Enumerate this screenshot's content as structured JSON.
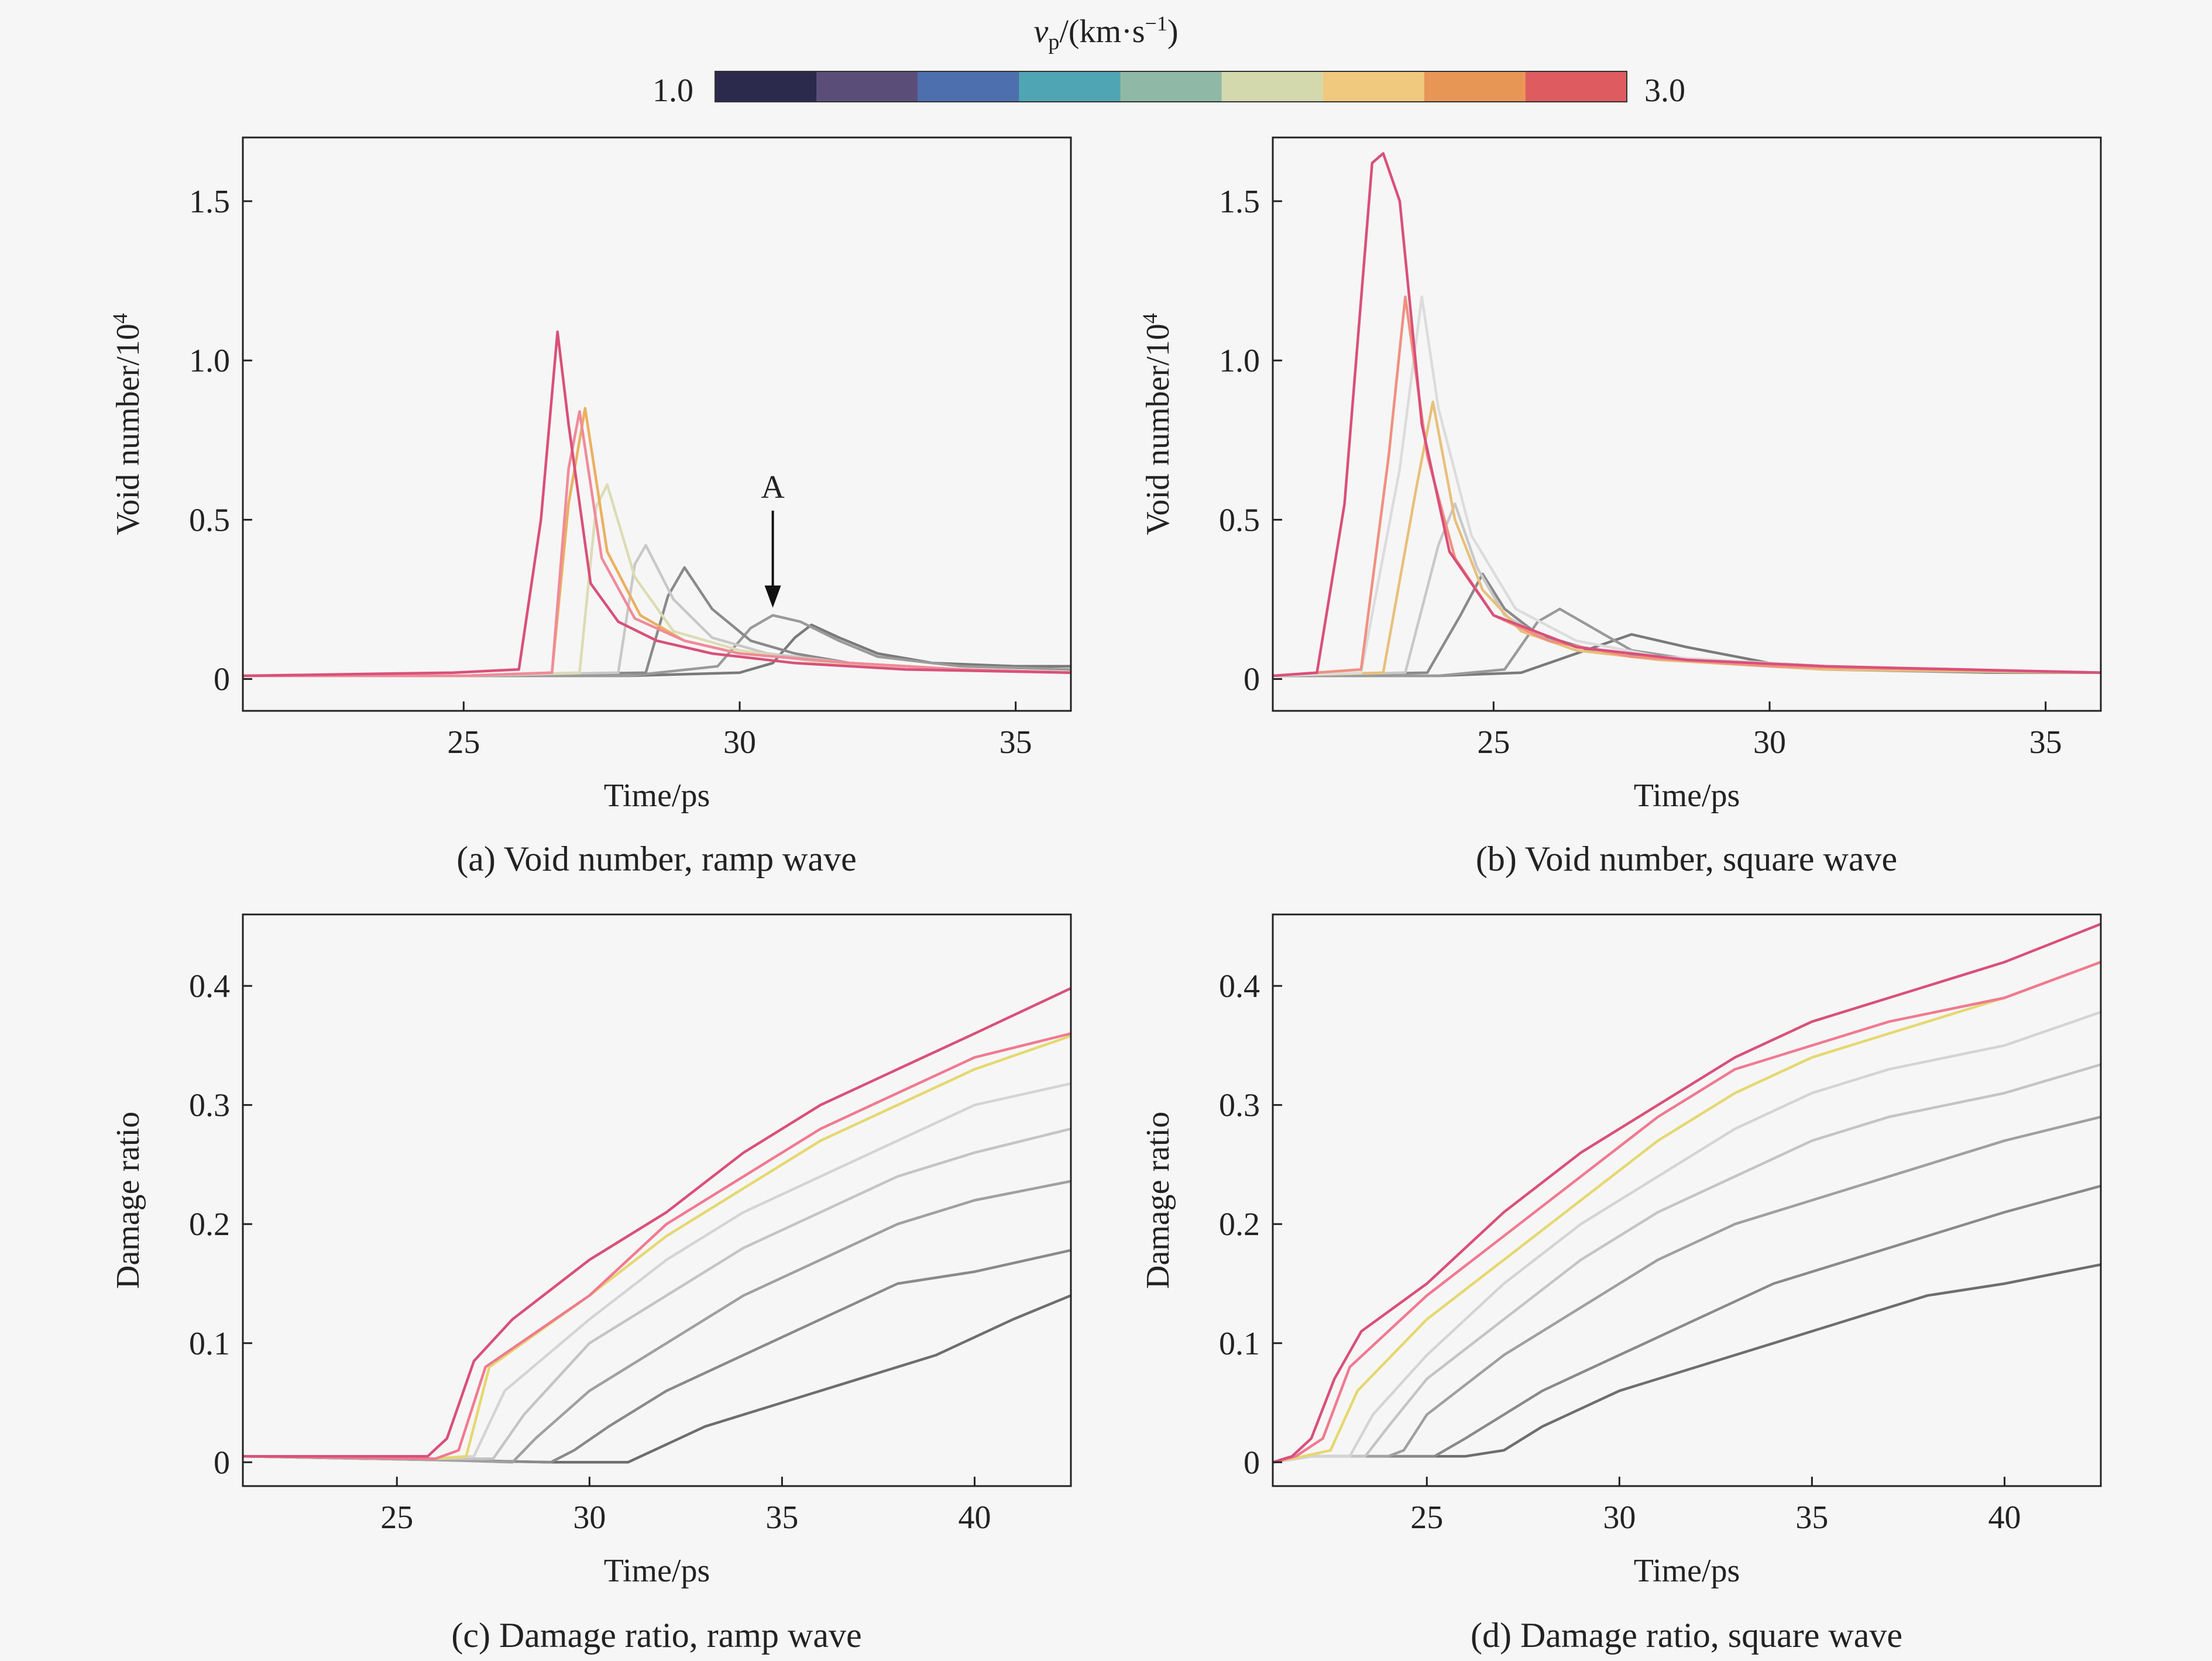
{
  "colorbar": {
    "label_var": "v",
    "label_sub": "p",
    "label_unit": "/(km·s",
    "label_exp": "−1",
    "label_close": ")",
    "min_label": "1.0",
    "max_label": "3.0",
    "colors": [
      "#2b2a4c",
      "#5a4e79",
      "#4e6fad",
      "#4fa5b4",
      "#8fb9a6",
      "#d3d9ad",
      "#f0c97f",
      "#e89656",
      "#de5b5f"
    ]
  },
  "chart_data": [
    {
      "id": "a",
      "type": "line",
      "caption": "(a) Void number, ramp wave",
      "xlabel": "Time/ps",
      "ylabel": "Void number/10",
      "ylabel_exp": "4",
      "xlim": [
        21,
        36
      ],
      "ylim": [
        -0.1,
        1.7
      ],
      "xticks": [
        25,
        30,
        35
      ],
      "yticks": [
        0,
        0.5,
        1.0,
        1.5
      ],
      "yticklabels": [
        "0",
        "0.5",
        "1.0",
        "1.5"
      ],
      "annotation": {
        "text": "A",
        "x": 30.6,
        "y": 0.22
      },
      "series": [
        {
          "color": "#7a7a7a",
          "x": [
            21,
            24,
            28,
            30,
            30.6,
            31,
            31.3,
            31.8,
            32.5,
            33.5,
            35,
            36
          ],
          "y": [
            0.01,
            0.01,
            0.01,
            0.02,
            0.05,
            0.13,
            0.17,
            0.13,
            0.08,
            0.05,
            0.04,
            0.04
          ]
        },
        {
          "color": "#9a9a9a",
          "x": [
            21,
            25,
            28,
            29.6,
            30.2,
            30.6,
            31.1,
            31.8,
            32.5,
            34,
            36
          ],
          "y": [
            0.01,
            0.01,
            0.01,
            0.04,
            0.16,
            0.2,
            0.18,
            0.12,
            0.07,
            0.04,
            0.03
          ]
        },
        {
          "color": "#8a8a8a",
          "x": [
            21,
            25,
            28.3,
            28.7,
            29,
            29.5,
            30.2,
            31,
            32,
            34,
            36
          ],
          "y": [
            0.01,
            0.01,
            0.02,
            0.26,
            0.35,
            0.22,
            0.12,
            0.08,
            0.05,
            0.03,
            0.02
          ]
        },
        {
          "color": "#c8c8c8",
          "x": [
            21,
            25,
            27.8,
            28.1,
            28.3,
            28.8,
            29.5,
            30.5,
            32,
            34,
            36
          ],
          "y": [
            0.01,
            0.01,
            0.02,
            0.36,
            0.42,
            0.25,
            0.13,
            0.08,
            0.05,
            0.03,
            0.02
          ]
        },
        {
          "color": "#dcdcb4",
          "x": [
            21,
            25,
            27.1,
            27.4,
            27.6,
            28.1,
            28.8,
            30,
            31.5,
            34,
            36
          ],
          "y": [
            0.01,
            0.01,
            0.02,
            0.54,
            0.61,
            0.32,
            0.15,
            0.09,
            0.05,
            0.03,
            0.02
          ]
        },
        {
          "color": "#eab060",
          "x": [
            21,
            25,
            26.6,
            26.9,
            27.2,
            27.6,
            28.2,
            29,
            30,
            32,
            34,
            36
          ],
          "y": [
            0.01,
            0.01,
            0.02,
            0.55,
            0.85,
            0.4,
            0.2,
            0.12,
            0.08,
            0.05,
            0.03,
            0.02
          ]
        },
        {
          "color": "#f08a9a",
          "x": [
            21,
            25,
            26.6,
            26.9,
            27.1,
            27.5,
            28.1,
            29,
            30,
            32,
            34,
            36
          ],
          "y": [
            0.01,
            0.01,
            0.02,
            0.66,
            0.84,
            0.38,
            0.19,
            0.12,
            0.08,
            0.05,
            0.03,
            0.02
          ]
        },
        {
          "color": "#d9507a",
          "x": [
            21,
            24.8,
            26,
            26.4,
            26.7,
            26.9,
            27.3,
            27.8,
            28.5,
            29.5,
            31,
            33,
            36
          ],
          "y": [
            0.01,
            0.02,
            0.03,
            0.5,
            1.09,
            0.8,
            0.3,
            0.18,
            0.12,
            0.08,
            0.05,
            0.03,
            0.02
          ]
        }
      ]
    },
    {
      "id": "b",
      "type": "line",
      "caption": "(b) Void number, square wave",
      "xlabel": "Time/ps",
      "ylabel": "Void number/10",
      "ylabel_exp": "4",
      "xlim": [
        21,
        36
      ],
      "ylim": [
        -0.1,
        1.7
      ],
      "xticks": [
        25,
        30,
        35
      ],
      "yticks": [
        0,
        0.5,
        1.0,
        1.5
      ],
      "yticklabels": [
        "0",
        "0.5",
        "1.0",
        "1.5"
      ],
      "series": [
        {
          "color": "#7a7a7a",
          "x": [
            21,
            24,
            25.5,
            26.5,
            27.5,
            28.5,
            30,
            32,
            34,
            36
          ],
          "y": [
            0.01,
            0.01,
            0.02,
            0.08,
            0.14,
            0.1,
            0.05,
            0.03,
            0.02,
            0.02
          ]
        },
        {
          "color": "#9a9a9a",
          "x": [
            21,
            24,
            25.2,
            25.8,
            26.2,
            26.8,
            27.5,
            29,
            31,
            34,
            36
          ],
          "y": [
            0.01,
            0.01,
            0.03,
            0.18,
            0.22,
            0.16,
            0.09,
            0.05,
            0.03,
            0.02,
            0.02
          ]
        },
        {
          "color": "#8a8a8a",
          "x": [
            21,
            23.8,
            24.4,
            24.8,
            25.2,
            25.8,
            27,
            29,
            32,
            36
          ],
          "y": [
            0.01,
            0.02,
            0.2,
            0.33,
            0.22,
            0.14,
            0.08,
            0.05,
            0.03,
            0.02
          ]
        },
        {
          "color": "#c8c8c8",
          "x": [
            21,
            23.4,
            24,
            24.3,
            24.7,
            25.2,
            26,
            27.5,
            30,
            33,
            36
          ],
          "y": [
            0.01,
            0.02,
            0.42,
            0.55,
            0.35,
            0.2,
            0.12,
            0.07,
            0.04,
            0.03,
            0.02
          ]
        },
        {
          "color": "#e8c07a",
          "x": [
            21,
            23,
            23.6,
            23.9,
            24.3,
            24.8,
            25.5,
            26.5,
            28,
            31,
            36
          ],
          "y": [
            0.01,
            0.02,
            0.6,
            0.87,
            0.5,
            0.28,
            0.15,
            0.09,
            0.06,
            0.03,
            0.02
          ]
        },
        {
          "color": "#dcdcdc",
          "x": [
            21,
            22.6,
            23.3,
            23.7,
            24,
            24.6,
            25.4,
            26.5,
            28,
            31,
            36
          ],
          "y": [
            0.01,
            0.02,
            0.66,
            1.2,
            0.85,
            0.45,
            0.22,
            0.12,
            0.07,
            0.04,
            0.02
          ]
        },
        {
          "color": "#f09080",
          "x": [
            21,
            22.6,
            23.1,
            23.4,
            23.8,
            24.3,
            25,
            26,
            27.5,
            30,
            36
          ],
          "y": [
            0.01,
            0.03,
            0.7,
            1.2,
            0.7,
            0.38,
            0.2,
            0.12,
            0.07,
            0.04,
            0.02
          ]
        },
        {
          "color": "#d9507a",
          "x": [
            21,
            21.8,
            22.3,
            22.8,
            23,
            23.3,
            23.7,
            24.2,
            25,
            26.5,
            28.5,
            31,
            36
          ],
          "y": [
            0.01,
            0.02,
            0.55,
            1.62,
            1.65,
            1.5,
            0.8,
            0.4,
            0.2,
            0.1,
            0.06,
            0.04,
            0.02
          ]
        }
      ]
    },
    {
      "id": "c",
      "type": "line",
      "caption": "(c) Damage ratio, ramp wave",
      "xlabel": "Time/ps",
      "ylabel": "Damage ratio",
      "xlim": [
        21,
        42.5
      ],
      "ylim": [
        -0.02,
        0.46
      ],
      "xticks": [
        25,
        30,
        35,
        40
      ],
      "yticks": [
        0,
        0.1,
        0.2,
        0.3,
        0.4
      ],
      "yticklabels": [
        "0",
        "0.1",
        "0.2",
        "0.3",
        "0.4"
      ],
      "series": [
        {
          "color": "#6e6e6e",
          "x": [
            21,
            26,
            29,
            31,
            32,
            33,
            35,
            37,
            39,
            41,
            42.5
          ],
          "y": [
            0.005,
            0.002,
            0,
            0,
            0.015,
            0.03,
            0.05,
            0.07,
            0.09,
            0.12,
            0.14
          ]
        },
        {
          "color": "#8a8a8a",
          "x": [
            21,
            26,
            29,
            29.6,
            30.5,
            32,
            34,
            36,
            38,
            40,
            42.5
          ],
          "y": [
            0.005,
            0.002,
            0,
            0.01,
            0.03,
            0.06,
            0.09,
            0.12,
            0.15,
            0.16,
            0.178
          ]
        },
        {
          "color": "#a0a0a0",
          "x": [
            21,
            26,
            28,
            28.6,
            30,
            32,
            34,
            36,
            38,
            40,
            42.5
          ],
          "y": [
            0.005,
            0.002,
            0,
            0.02,
            0.06,
            0.1,
            0.14,
            0.17,
            0.2,
            0.22,
            0.236
          ]
        },
        {
          "color": "#c4c4c4",
          "x": [
            21,
            26,
            27.5,
            28.3,
            30,
            32,
            34,
            36,
            38,
            40,
            42.5
          ],
          "y": [
            0.005,
            0.003,
            0.003,
            0.04,
            0.1,
            0.14,
            0.18,
            0.21,
            0.24,
            0.26,
            0.28
          ]
        },
        {
          "color": "#d4d4d4",
          "x": [
            21,
            26,
            27,
            27.8,
            30,
            32,
            34,
            36,
            38,
            40,
            42.5
          ],
          "y": [
            0.005,
            0.003,
            0.005,
            0.06,
            0.12,
            0.17,
            0.21,
            0.24,
            0.27,
            0.3,
            0.318
          ]
        },
        {
          "color": "#e5d870",
          "x": [
            21,
            26,
            26.8,
            27.4,
            30,
            32,
            34,
            36,
            38,
            40,
            42.5
          ],
          "y": [
            0.005,
            0.003,
            0.005,
            0.08,
            0.14,
            0.19,
            0.23,
            0.27,
            0.3,
            0.33,
            0.358
          ]
        },
        {
          "color": "#f07a90",
          "x": [
            21,
            26,
            26.6,
            27.3,
            30,
            32,
            34,
            36,
            38,
            40,
            42.5
          ],
          "y": [
            0.005,
            0.003,
            0.01,
            0.08,
            0.14,
            0.2,
            0.24,
            0.28,
            0.31,
            0.34,
            0.36
          ]
        },
        {
          "color": "#d9507a",
          "x": [
            21,
            25.8,
            26.3,
            27,
            28,
            30,
            32,
            34,
            36,
            38,
            40,
            42.5
          ],
          "y": [
            0.005,
            0.005,
            0.02,
            0.085,
            0.12,
            0.17,
            0.21,
            0.26,
            0.3,
            0.33,
            0.36,
            0.398
          ]
        }
      ]
    },
    {
      "id": "d",
      "type": "line",
      "caption": "(d) Damage ratio, square wave",
      "xlabel": "Time/ps",
      "ylabel": "Damage ratio",
      "xlim": [
        21,
        42.5
      ],
      "ylim": [
        -0.02,
        0.46
      ],
      "xticks": [
        25,
        30,
        35,
        40
      ],
      "yticks": [
        0,
        0.1,
        0.2,
        0.3,
        0.4
      ],
      "yticklabels": [
        "0",
        "0.1",
        "0.2",
        "0.3",
        "0.4"
      ],
      "series": [
        {
          "color": "#6e6e6e",
          "x": [
            21,
            22,
            24,
            26,
            27,
            28,
            30,
            32,
            34,
            36,
            38,
            40,
            42.5
          ],
          "y": [
            0,
            0.005,
            0.005,
            0.005,
            0.01,
            0.03,
            0.06,
            0.08,
            0.1,
            0.12,
            0.14,
            0.15,
            0.166
          ]
        },
        {
          "color": "#8a8a8a",
          "x": [
            21,
            22,
            24,
            25.2,
            26,
            28,
            30,
            32,
            34,
            36,
            38,
            40,
            42.5
          ],
          "y": [
            0,
            0.005,
            0.005,
            0.005,
            0.02,
            0.06,
            0.09,
            0.12,
            0.15,
            0.17,
            0.19,
            0.21,
            0.232
          ]
        },
        {
          "color": "#a0a0a0",
          "x": [
            21,
            22,
            24,
            24.4,
            25,
            27,
            29,
            31,
            33,
            35,
            37,
            40,
            42.5
          ],
          "y": [
            0,
            0.005,
            0.005,
            0.01,
            0.04,
            0.09,
            0.13,
            0.17,
            0.2,
            0.22,
            0.24,
            0.27,
            0.29
          ]
        },
        {
          "color": "#c4c4c4",
          "x": [
            21,
            22,
            23.4,
            24,
            25,
            27,
            29,
            31,
            33,
            35,
            37,
            40,
            42.5
          ],
          "y": [
            0,
            0.005,
            0.005,
            0.03,
            0.07,
            0.12,
            0.17,
            0.21,
            0.24,
            0.27,
            0.29,
            0.31,
            0.334
          ]
        },
        {
          "color": "#d4d4d4",
          "x": [
            21,
            22,
            23,
            23.6,
            25,
            27,
            29,
            31,
            33,
            35,
            37,
            40,
            42.5
          ],
          "y": [
            0,
            0.005,
            0.005,
            0.04,
            0.09,
            0.15,
            0.2,
            0.24,
            0.28,
            0.31,
            0.33,
            0.35,
            0.378
          ]
        },
        {
          "color": "#e5d870",
          "x": [
            21,
            21.8,
            22.5,
            23.2,
            25,
            27,
            29,
            31,
            33,
            35,
            37,
            40,
            42.5
          ],
          "y": [
            0,
            0.005,
            0.01,
            0.06,
            0.12,
            0.17,
            0.22,
            0.27,
            0.31,
            0.34,
            0.36,
            0.39,
            0.42
          ]
        },
        {
          "color": "#f07a90",
          "x": [
            21,
            21.6,
            22.3,
            23,
            25,
            27,
            29,
            31,
            33,
            35,
            37,
            40,
            42.5
          ],
          "y": [
            0,
            0.005,
            0.02,
            0.08,
            0.14,
            0.19,
            0.24,
            0.29,
            0.33,
            0.35,
            0.37,
            0.39,
            0.42
          ]
        },
        {
          "color": "#d9507a",
          "x": [
            21,
            21.5,
            22,
            22.6,
            23.3,
            25,
            27,
            29,
            31,
            33,
            35,
            37,
            40,
            42.5
          ],
          "y": [
            0,
            0.005,
            0.02,
            0.07,
            0.11,
            0.15,
            0.21,
            0.26,
            0.3,
            0.34,
            0.37,
            0.39,
            0.42,
            0.452
          ]
        }
      ]
    }
  ]
}
